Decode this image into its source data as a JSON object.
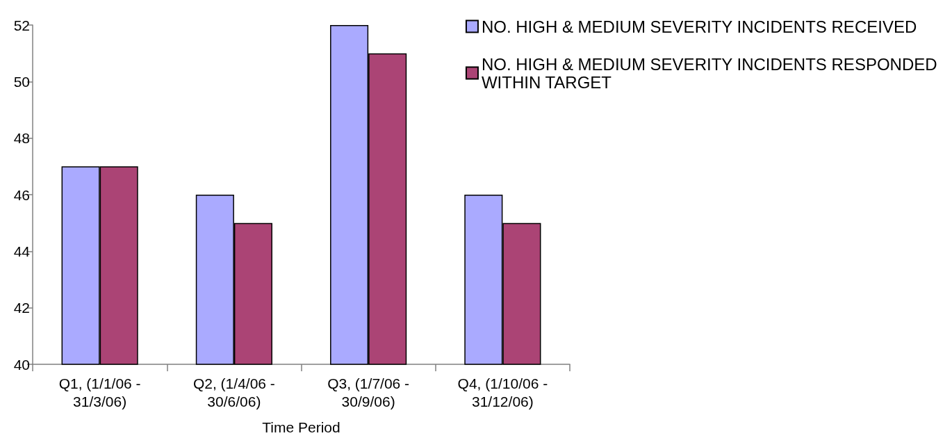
{
  "chart_data": {
    "type": "bar",
    "xlabel": "Time Period",
    "categories": [
      "Q1, (1/1/06 - 31/3/06)",
      "Q2, (1/4/06 - 30/6/06)",
      "Q3, (1/7/06 - 30/9/06)",
      "Q4, (1/10/06 - 31/12/06)"
    ],
    "series": [
      {
        "name": "NO. HIGH & MEDIUM SEVERITY INCIDENTS RECEIVED",
        "color": "#aaaaff",
        "values": [
          47,
          46,
          52,
          46
        ]
      },
      {
        "name": "NO. HIGH & MEDIUM SEVERITY INCIDENTS RESPONDED WITHIN TARGET",
        "color": "#ab4475",
        "values": [
          47,
          45,
          51,
          45
        ]
      }
    ],
    "ylim": [
      40,
      52
    ],
    "yticks": [
      40,
      42,
      44,
      46,
      48,
      50,
      52
    ],
    "legend": "top right"
  }
}
